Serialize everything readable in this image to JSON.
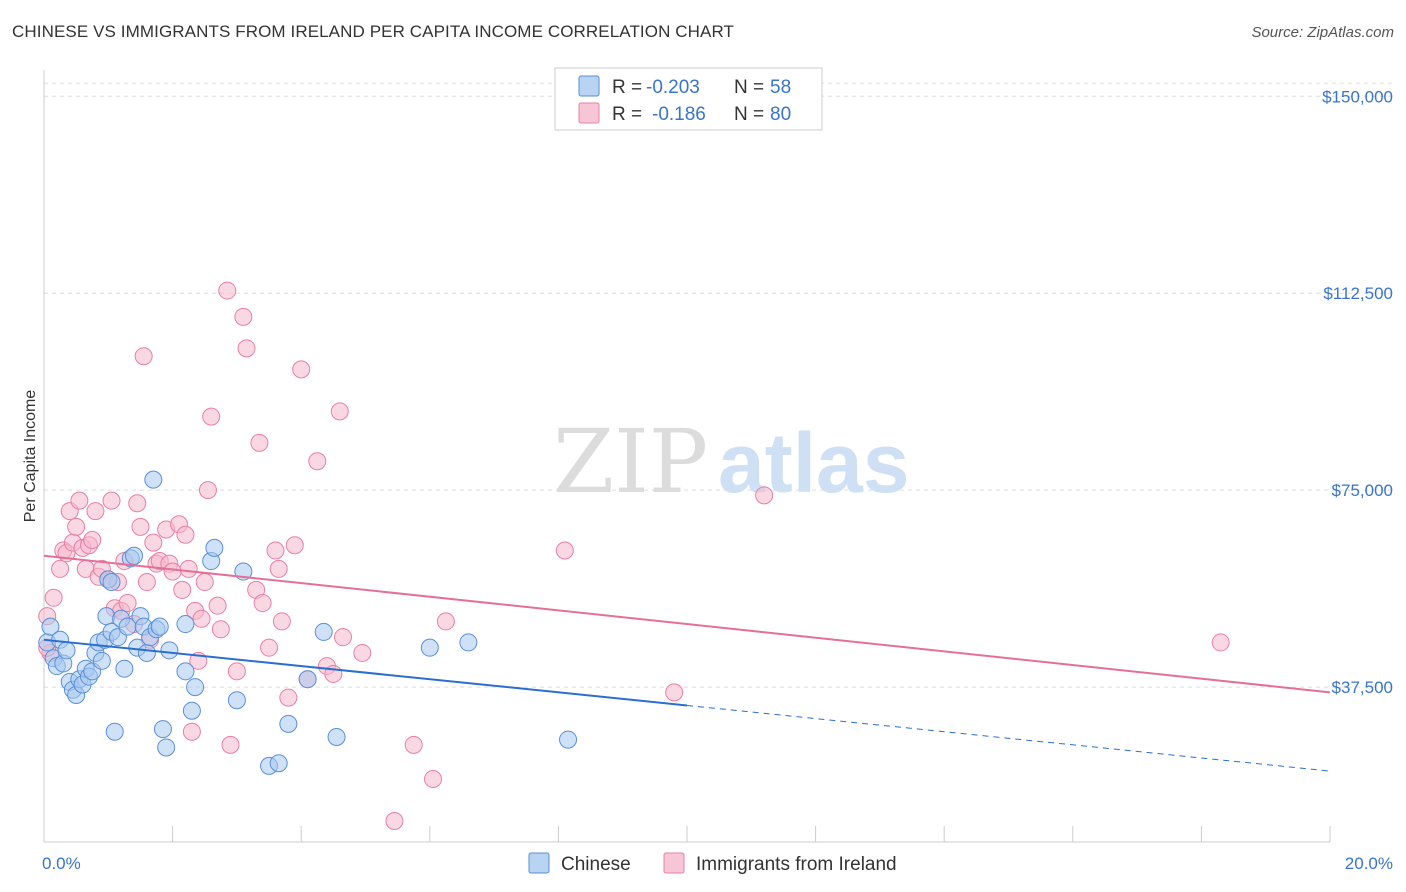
{
  "title": "CHINESE VS IMMIGRANTS FROM IRELAND PER CAPITA INCOME CORRELATION CHART",
  "source": "Source: ZipAtlas.com",
  "watermark": {
    "part1": "ZIP",
    "part2": "atlas"
  },
  "colors": {
    "blue_fill": "#a8c8f0",
    "blue_stroke": "#5a8fd8",
    "blue_line": "#2a6fd0",
    "pink_fill": "#f5b8cc",
    "pink_stroke": "#e880a4",
    "pink_line": "#e4709a",
    "label_blue": "#3a74c9",
    "grid": "#dddddd"
  },
  "legend": {
    "rows": [
      {
        "r_label": "R = ",
        "r_value": "-0.203",
        "n_label": "N = ",
        "n_value": "58"
      },
      {
        "r_label": "R = ",
        "r_value": "-0.186",
        "n_label": "N = ",
        "n_value": "80"
      }
    ]
  },
  "chart_data": {
    "type": "scatter",
    "title": "CHINESE VS IMMIGRANTS FROM IRELAND PER CAPITA INCOME CORRELATION CHART",
    "xlabel": "",
    "ylabel": "Per Capita Income",
    "xlim": [
      0,
      20
    ],
    "ylim": [
      8000,
      155000
    ],
    "x_tick_labels": [
      "0.0%",
      "20.0%"
    ],
    "y_ticks": [
      37500,
      75000,
      112500,
      150000
    ],
    "y_tick_labels": [
      "$37,500",
      "$75,000",
      "$112,500",
      "$150,000"
    ],
    "grid": true,
    "legend_position": "top-center",
    "series": [
      {
        "name": "Chinese",
        "color": "#a8c8f0",
        "r": -0.203,
        "n": 58,
        "trend": {
          "x": [
            0,
            10
          ],
          "y": [
            46500,
            34000
          ],
          "dashed_to": [
            20,
            21500
          ]
        },
        "points": [
          [
            0.05,
            46000
          ],
          [
            0.1,
            49000
          ],
          [
            0.15,
            43000
          ],
          [
            0.2,
            41500
          ],
          [
            0.25,
            46500
          ],
          [
            0.3,
            42000
          ],
          [
            0.35,
            44500
          ],
          [
            0.4,
            38500
          ],
          [
            0.45,
            37000
          ],
          [
            0.5,
            36000
          ],
          [
            0.55,
            39000
          ],
          [
            0.6,
            38000
          ],
          [
            0.65,
            41000
          ],
          [
            0.7,
            39500
          ],
          [
            0.75,
            40500
          ],
          [
            0.8,
            44000
          ],
          [
            0.85,
            46000
          ],
          [
            0.9,
            42500
          ],
          [
            0.95,
            46500
          ],
          [
            0.97,
            51000
          ],
          [
            1.0,
            58000
          ],
          [
            1.05,
            48000
          ],
          [
            1.1,
            29000
          ],
          [
            1.15,
            47000
          ],
          [
            1.2,
            50500
          ],
          [
            1.25,
            41000
          ],
          [
            1.3,
            49000
          ],
          [
            1.35,
            62000
          ],
          [
            1.4,
            62500
          ],
          [
            1.45,
            45000
          ],
          [
            1.5,
            51000
          ],
          [
            1.55,
            49000
          ],
          [
            1.6,
            44000
          ],
          [
            1.65,
            47000
          ],
          [
            1.7,
            77000
          ],
          [
            1.75,
            48500
          ],
          [
            1.8,
            49000
          ],
          [
            1.85,
            29500
          ],
          [
            1.9,
            26000
          ],
          [
            1.95,
            44500
          ],
          [
            2.2,
            49500
          ],
          [
            2.2,
            40500
          ],
          [
            2.3,
            33000
          ],
          [
            2.35,
            37500
          ],
          [
            2.6,
            61500
          ],
          [
            2.65,
            64000
          ],
          [
            3.1,
            59500
          ],
          [
            3.5,
            22500
          ],
          [
            3.65,
            23000
          ],
          [
            3.8,
            30500
          ],
          [
            4.1,
            39000
          ],
          [
            4.35,
            48000
          ],
          [
            4.55,
            28000
          ],
          [
            6.0,
            45000
          ],
          [
            6.6,
            46000
          ],
          [
            8.15,
            27500
          ],
          [
            3.0,
            35000
          ],
          [
            1.05,
            57500
          ]
        ]
      },
      {
        "name": "Immigrants from Ireland",
        "color": "#f5b8cc",
        "r": -0.186,
        "n": 80,
        "trend": {
          "x": [
            0,
            20
          ],
          "y": [
            62500,
            36500
          ]
        },
        "points": [
          [
            0.05,
            51000
          ],
          [
            0.1,
            44000
          ],
          [
            0.15,
            54500
          ],
          [
            0.25,
            60000
          ],
          [
            0.3,
            63500
          ],
          [
            0.35,
            63000
          ],
          [
            0.4,
            71000
          ],
          [
            0.45,
            65000
          ],
          [
            0.5,
            68000
          ],
          [
            0.55,
            73000
          ],
          [
            0.6,
            64000
          ],
          [
            0.65,
            60000
          ],
          [
            0.7,
            64500
          ],
          [
            0.75,
            65500
          ],
          [
            0.8,
            71000
          ],
          [
            0.85,
            58500
          ],
          [
            0.9,
            60000
          ],
          [
            1.0,
            58000
          ],
          [
            1.05,
            73000
          ],
          [
            1.1,
            52500
          ],
          [
            1.15,
            57500
          ],
          [
            1.2,
            52000
          ],
          [
            1.25,
            61500
          ],
          [
            1.3,
            53500
          ],
          [
            1.4,
            49500
          ],
          [
            1.45,
            72500
          ],
          [
            1.5,
            68000
          ],
          [
            1.55,
            100500
          ],
          [
            1.6,
            57500
          ],
          [
            1.65,
            46500
          ],
          [
            1.7,
            65000
          ],
          [
            1.75,
            61000
          ],
          [
            1.8,
            61500
          ],
          [
            1.9,
            67500
          ],
          [
            1.95,
            61000
          ],
          [
            2.0,
            59500
          ],
          [
            2.1,
            68500
          ],
          [
            2.15,
            56000
          ],
          [
            2.2,
            66500
          ],
          [
            2.25,
            60000
          ],
          [
            2.3,
            29000
          ],
          [
            2.35,
            52000
          ],
          [
            2.4,
            42500
          ],
          [
            2.45,
            50500
          ],
          [
            2.5,
            57500
          ],
          [
            2.55,
            75000
          ],
          [
            2.6,
            89000
          ],
          [
            2.7,
            53000
          ],
          [
            2.75,
            48500
          ],
          [
            2.85,
            113000
          ],
          [
            2.9,
            26500
          ],
          [
            3.0,
            40500
          ],
          [
            3.1,
            108000
          ],
          [
            3.15,
            102000
          ],
          [
            3.3,
            56000
          ],
          [
            3.35,
            84000
          ],
          [
            3.4,
            53500
          ],
          [
            3.5,
            45000
          ],
          [
            3.6,
            63500
          ],
          [
            3.65,
            60000
          ],
          [
            3.7,
            50000
          ],
          [
            3.8,
            35500
          ],
          [
            3.9,
            64500
          ],
          [
            4.0,
            98000
          ],
          [
            4.1,
            39000
          ],
          [
            4.25,
            80500
          ],
          [
            4.4,
            41500
          ],
          [
            4.5,
            40000
          ],
          [
            4.6,
            90000
          ],
          [
            4.65,
            47000
          ],
          [
            4.95,
            44000
          ],
          [
            5.45,
            12000
          ],
          [
            5.75,
            26500
          ],
          [
            6.05,
            20000
          ],
          [
            6.25,
            50000
          ],
          [
            8.1,
            63500
          ],
          [
            9.8,
            36500
          ],
          [
            11.2,
            74000
          ],
          [
            18.3,
            46000
          ],
          [
            0.05,
            45000
          ]
        ]
      }
    ]
  },
  "bottom_legend": {
    "items": [
      "Chinese",
      "Immigrants from Ireland"
    ]
  }
}
